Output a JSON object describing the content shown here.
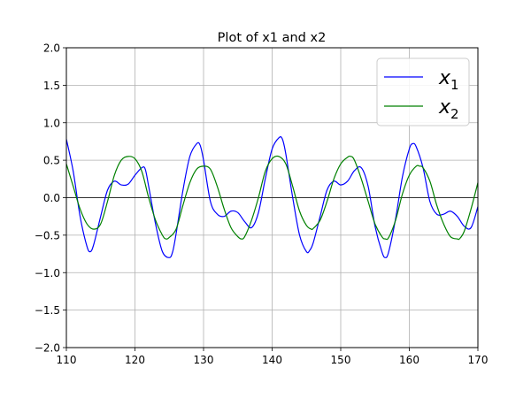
{
  "chart_data": {
    "type": "line",
    "title": "Plot of x1 and x2",
    "xlabel": "",
    "ylabel": "",
    "xlim": [
      110,
      170
    ],
    "ylim": [
      -2.0,
      2.0
    ],
    "x_ticks": [
      110,
      120,
      130,
      140,
      150,
      160,
      170
    ],
    "y_ticks": [
      -2.0,
      -1.5,
      -1.0,
      -0.5,
      0.0,
      0.5,
      1.0,
      1.5,
      2.0
    ],
    "x_tick_labels": [
      "110",
      "120",
      "130",
      "140",
      "150",
      "160",
      "170"
    ],
    "y_tick_labels": [
      "−2.0",
      "−1.5",
      "−1.0",
      "−0.5",
      "0.0",
      "0.5",
      "1.0",
      "1.5",
      "2.0"
    ],
    "grid": true,
    "zero_line": true,
    "legend_position": "top-right",
    "series": [
      {
        "name": "x1",
        "legend_base": "x",
        "legend_sub": "1",
        "color": "#0000ff",
        "x": [
          110,
          111,
          112,
          113,
          113.5,
          114,
          115,
          116,
          117,
          118,
          119,
          120,
          121,
          121.5,
          122,
          123,
          124,
          125,
          125.5,
          126,
          127,
          128,
          129,
          129.5,
          130,
          131,
          132,
          133,
          134,
          135,
          136,
          137,
          138,
          139,
          140,
          141,
          141.5,
          142,
          143,
          144,
          145,
          145.5,
          146,
          147,
          148,
          149,
          150,
          151,
          152,
          153,
          154,
          155,
          156,
          156.5,
          157,
          158,
          159,
          160,
          160.5,
          161,
          162,
          163,
          164,
          165,
          166,
          167,
          168,
          169,
          170
        ],
        "y": [
          0.78,
          0.35,
          -0.25,
          -0.65,
          -0.72,
          -0.62,
          -0.25,
          0.1,
          0.22,
          0.17,
          0.18,
          0.3,
          0.4,
          0.38,
          0.15,
          -0.35,
          -0.72,
          -0.8,
          -0.72,
          -0.48,
          0.1,
          0.55,
          0.72,
          0.7,
          0.5,
          -0.05,
          -0.22,
          -0.25,
          -0.18,
          -0.2,
          -0.32,
          -0.4,
          -0.2,
          0.25,
          0.65,
          0.8,
          0.78,
          0.58,
          0.0,
          -0.5,
          -0.72,
          -0.7,
          -0.6,
          -0.25,
          0.1,
          0.22,
          0.17,
          0.22,
          0.36,
          0.4,
          0.15,
          -0.38,
          -0.72,
          -0.8,
          -0.72,
          -0.28,
          0.28,
          0.65,
          0.72,
          0.68,
          0.4,
          -0.05,
          -0.22,
          -0.22,
          -0.18,
          -0.25,
          -0.38,
          -0.4,
          -0.12
        ]
      },
      {
        "name": "x2",
        "legend_base": "x",
        "legend_sub": "2",
        "color": "#008000",
        "x": [
          110,
          111,
          112,
          113,
          114,
          115,
          116,
          117,
          118,
          119,
          120,
          121,
          122,
          123,
          124,
          124.5,
          125,
          126,
          127,
          128,
          129,
          130,
          131,
          132,
          133,
          134,
          135,
          135.5,
          136,
          137,
          138,
          139,
          140,
          141,
          142,
          143,
          144,
          145,
          145.7,
          146,
          147,
          148,
          149,
          150,
          151,
          151.5,
          152,
          153,
          154,
          155,
          156,
          156.5,
          157,
          158,
          159,
          160,
          161,
          161.5,
          162,
          163,
          164,
          165,
          166,
          167,
          167.3,
          168,
          169,
          170
        ],
        "y": [
          0.45,
          0.15,
          -0.15,
          -0.35,
          -0.42,
          -0.35,
          -0.05,
          0.3,
          0.5,
          0.55,
          0.52,
          0.35,
          0.0,
          -0.3,
          -0.5,
          -0.55,
          -0.53,
          -0.42,
          -0.1,
          0.2,
          0.38,
          0.42,
          0.38,
          0.15,
          -0.15,
          -0.4,
          -0.52,
          -0.55,
          -0.52,
          -0.3,
          0.0,
          0.35,
          0.52,
          0.55,
          0.45,
          0.15,
          -0.18,
          -0.37,
          -0.42,
          -0.41,
          -0.3,
          -0.05,
          0.25,
          0.45,
          0.54,
          0.55,
          0.5,
          0.25,
          -0.05,
          -0.35,
          -0.52,
          -0.55,
          -0.53,
          -0.3,
          0.05,
          0.3,
          0.42,
          0.42,
          0.4,
          0.22,
          -0.1,
          -0.35,
          -0.52,
          -0.55,
          -0.55,
          -0.45,
          -0.15,
          0.2
        ]
      }
    ]
  }
}
